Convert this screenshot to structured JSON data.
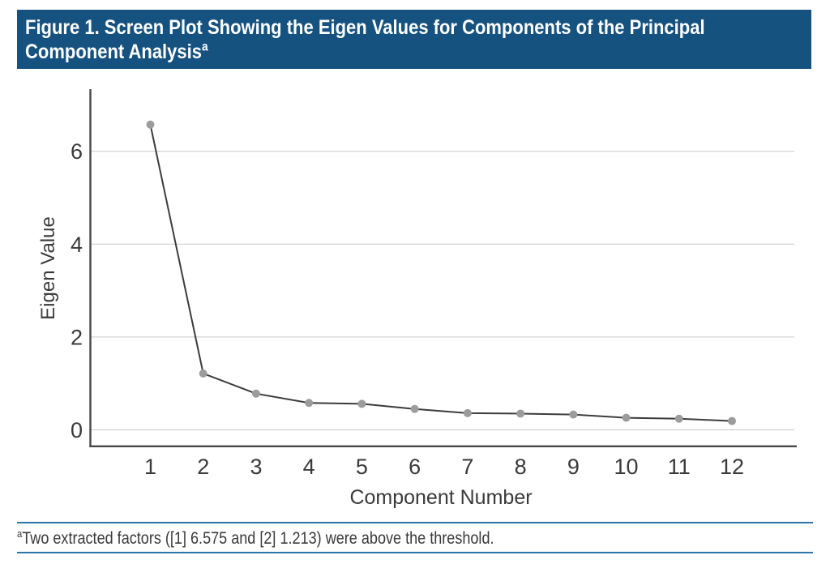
{
  "figure": {
    "title_lines": [
      "Figure 1. Screen Plot Showing the Eigen Values for Components of the Principal",
      "Component Analysis"
    ],
    "title_superscript": "a",
    "footnote_superscript": "a",
    "footnote_text": "Two extracted factors ([1] 6.575 and [2] 1.213) were above the threshold."
  },
  "colors": {
    "header_bg": "#16527f",
    "header_text": "#ffffff",
    "rule_blue": "#2d74a8",
    "grid_line": "#c9c9c9",
    "axis_line": "#474747",
    "text": "#3a3a3a",
    "data_line": "#3c3c3c",
    "marker": "#9c9c9c",
    "background": "#ffffff"
  },
  "chart_data": {
    "type": "line",
    "x": [
      1,
      2,
      3,
      4,
      5,
      6,
      7,
      8,
      9,
      10,
      11,
      12
    ],
    "values": [
      6.575,
      1.213,
      0.78,
      0.58,
      0.56,
      0.45,
      0.36,
      0.35,
      0.33,
      0.26,
      0.24,
      0.19
    ],
    "xlabel": "Component Number",
    "ylabel": "Eigen Value",
    "yticks": [
      0,
      2,
      4,
      6
    ],
    "ylim": [
      0,
      7.35
    ],
    "xlim": [
      0,
      13.2
    ],
    "grid": true,
    "legend": "none",
    "marker": "circle",
    "annotated_values": {
      "component_1": 6.575,
      "component_2": 1.213
    }
  }
}
